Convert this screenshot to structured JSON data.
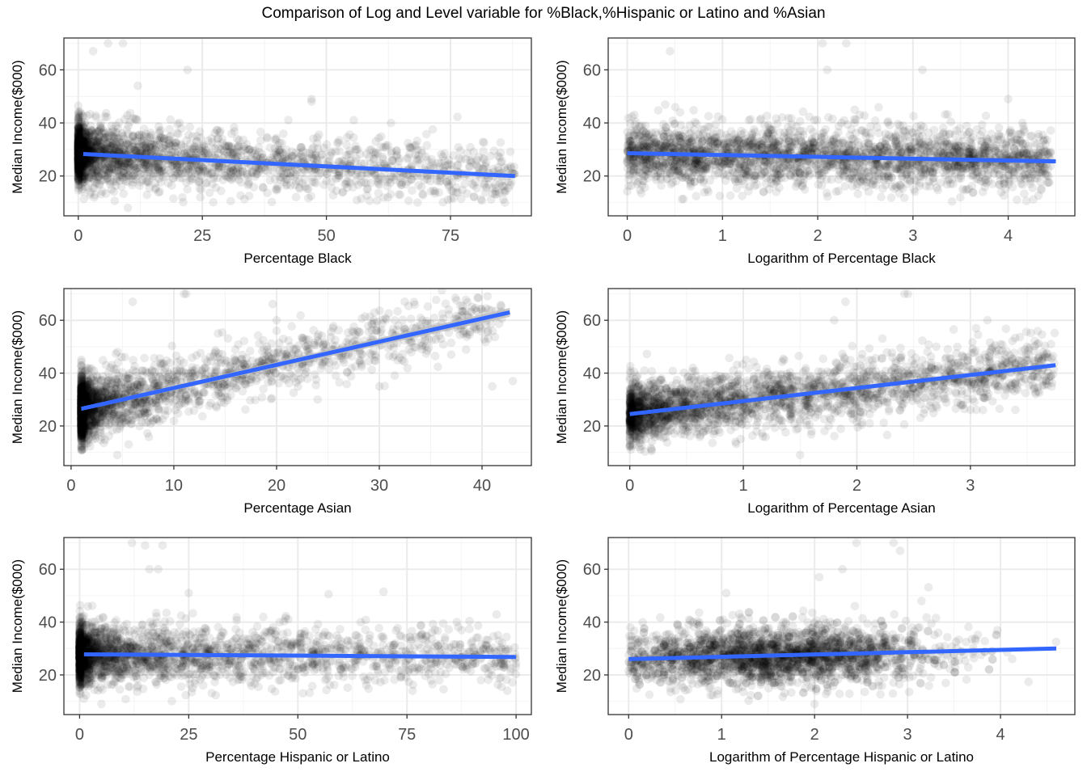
{
  "figure": {
    "title": "Comparison of Log and Level variable for %Black,%Hispanic or Latino and %Asian"
  },
  "style": {
    "point_color": "#000000",
    "point_opacity": 0.08,
    "line_color": "#3366FF",
    "ci_color": "#BDBDBD",
    "panel_border": "#333333",
    "grid_major": "#EBEBEB",
    "grid_minor": "#F4F4F4"
  },
  "chart_data": [
    {
      "type": "scatter",
      "xlabel": "Percentage Black",
      "ylabel": "Median Income($000)",
      "xlim": [
        -2.9,
        91.3
      ],
      "ylim": [
        5,
        72
      ],
      "xticks": [
        0,
        25,
        50,
        75
      ],
      "xtick_labels": [
        "0",
        "25",
        "50",
        "75"
      ],
      "yticks": [
        20,
        40,
        60
      ],
      "ytick_labels": [
        "20",
        "40",
        "60"
      ],
      "regression": {
        "x": [
          1,
          88
        ],
        "y": [
          28.3,
          20.0
        ]
      },
      "points_profile": {
        "x_dist": "skew_low",
        "x_min": 0,
        "x_max": 88,
        "n": 2600,
        "y_sd": 5.5
      },
      "outliers": [
        [
          3,
          67
        ],
        [
          6,
          70
        ],
        [
          9,
          70
        ],
        [
          12,
          54
        ],
        [
          22,
          60
        ],
        [
          47,
          49
        ],
        [
          47,
          48
        ],
        [
          63,
          40
        ],
        [
          10,
          8
        ]
      ]
    },
    {
      "type": "scatter",
      "xlabel": "Logarithm of Percentage Black",
      "ylabel": "Median Income($000)",
      "xlim": [
        -0.2,
        4.7
      ],
      "ylim": [
        5,
        72
      ],
      "xticks": [
        0,
        1,
        2,
        3,
        4
      ],
      "xtick_labels": [
        "0",
        "1",
        "2",
        "3",
        "4"
      ],
      "yticks": [
        20,
        40,
        60
      ],
      "ytick_labels": [
        "20",
        "40",
        "60"
      ],
      "regression": {
        "x": [
          0,
          4.5
        ],
        "y": [
          28.6,
          25.5
        ]
      },
      "points_profile": {
        "x_dist": "uniform_dense_low",
        "x_min": 0,
        "x_max": 4.45,
        "n": 2600,
        "y_sd": 5.5
      },
      "outliers": [
        [
          0.45,
          67
        ],
        [
          2.05,
          70
        ],
        [
          2.3,
          70
        ],
        [
          2.1,
          60
        ],
        [
          3.1,
          60
        ],
        [
          4.0,
          49
        ],
        [
          4.15,
          40
        ]
      ]
    },
    {
      "type": "scatter",
      "xlabel": "Percentage Asian",
      "ylabel": "Median Income($000)",
      "xlim": [
        -0.7,
        44.8
      ],
      "ylim": [
        5,
        72
      ],
      "xticks": [
        0,
        10,
        20,
        30,
        40
      ],
      "xtick_labels": [
        "0",
        "10",
        "20",
        "30",
        "40"
      ],
      "yticks": [
        20,
        40,
        60
      ],
      "ytick_labels": [
        "20",
        "40",
        "60"
      ],
      "regression": {
        "x": [
          1,
          42.7
        ],
        "y": [
          26.5,
          63.0
        ]
      },
      "ci_halfwidth": [
        0.7,
        1.7
      ],
      "points_profile": {
        "x_dist": "skew_low_asian",
        "x_min": 1,
        "x_max": 42,
        "n": 2600,
        "y_sd": 5.5
      },
      "outliers": [
        [
          6,
          67
        ],
        [
          11,
          70
        ],
        [
          11.2,
          70
        ],
        [
          20,
          60
        ],
        [
          20,
          56
        ],
        [
          36,
          53
        ],
        [
          37,
          47
        ],
        [
          41,
          35
        ],
        [
          43,
          37
        ],
        [
          30,
          35
        ],
        [
          24,
          30
        ],
        [
          4.5,
          9
        ]
      ]
    },
    {
      "type": "scatter",
      "xlabel": "Logarithm of Percentage Asian",
      "ylabel": "Median Income($000)",
      "xlim": [
        -0.19,
        3.92
      ],
      "ylim": [
        5,
        72
      ],
      "xticks": [
        0,
        1,
        2,
        3
      ],
      "xtick_labels": [
        "0",
        "1",
        "2",
        "3"
      ],
      "yticks": [
        20,
        40,
        60
      ],
      "ytick_labels": [
        "20",
        "40",
        "60"
      ],
      "regression": {
        "x": [
          0,
          3.75
        ],
        "y": [
          24.5,
          43.0
        ]
      },
      "points_profile": {
        "x_dist": "log_asian",
        "x_min": 0,
        "x_max": 3.75,
        "n": 2600,
        "y_sd": 5.5
      },
      "outliers": [
        [
          2.45,
          70
        ],
        [
          2.42,
          70
        ],
        [
          1.9,
          67
        ],
        [
          1.8,
          60
        ],
        [
          3.05,
          57
        ],
        [
          3.15,
          60
        ],
        [
          3.5,
          50
        ],
        [
          3.65,
          47
        ],
        [
          1.5,
          9
        ]
      ]
    },
    {
      "type": "scatter",
      "xlabel": "Percentage Hispanic or Latino",
      "ylabel": "Median Income($000)",
      "xlim": [
        -3.6,
        103.5
      ],
      "ylim": [
        5,
        72
      ],
      "xticks": [
        0,
        25,
        50,
        75,
        100
      ],
      "xtick_labels": [
        "0",
        "25",
        "50",
        "75",
        "100"
      ],
      "yticks": [
        20,
        40,
        60
      ],
      "ytick_labels": [
        "20",
        "40",
        "60"
      ],
      "regression": {
        "x": [
          1,
          100
        ],
        "y": [
          27.8,
          26.8
        ]
      },
      "points_profile": {
        "x_dist": "skew_low",
        "x_min": 0,
        "x_max": 100,
        "n": 2600,
        "y_sd": 5.5
      },
      "outliers": [
        [
          12,
          70
        ],
        [
          15,
          69
        ],
        [
          19,
          69
        ],
        [
          16,
          60
        ],
        [
          18,
          60
        ],
        [
          25,
          51
        ],
        [
          98,
          14
        ],
        [
          5,
          9
        ]
      ]
    },
    {
      "type": "scatter",
      "xlabel": "Logarithm of Percentage Hispanic or Latino",
      "ylabel": "Median Income($000)",
      "xlim": [
        -0.22,
        4.8
      ],
      "ylim": [
        5,
        72
      ],
      "xticks": [
        0,
        1,
        2,
        3,
        4
      ],
      "xtick_labels": [
        "0",
        "1",
        "2",
        "3",
        "4"
      ],
      "yticks": [
        20,
        40,
        60
      ],
      "ytick_labels": [
        "20",
        "40",
        "60"
      ],
      "regression": {
        "x": [
          0,
          4.6
        ],
        "y": [
          26.0,
          30.0
        ]
      },
      "points_profile": {
        "x_dist": "log_hisp",
        "x_min": 0,
        "x_max": 4.6,
        "n": 2600,
        "y_sd": 5.5
      },
      "outliers": [
        [
          2.45,
          70
        ],
        [
          2.85,
          70
        ],
        [
          2.92,
          67
        ],
        [
          1.05,
          51
        ],
        [
          2.05,
          57
        ],
        [
          2.3,
          60
        ],
        [
          3.15,
          48
        ],
        [
          2.0,
          9
        ]
      ]
    }
  ]
}
